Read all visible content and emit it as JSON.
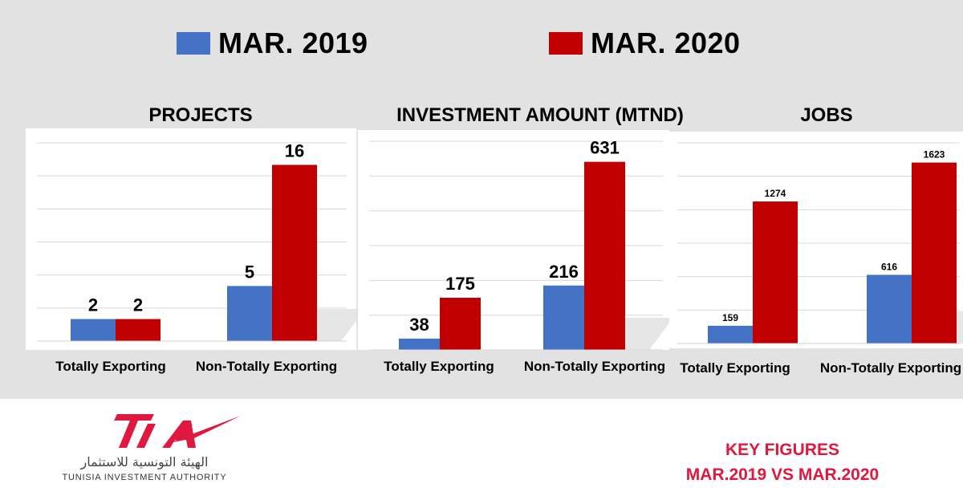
{
  "legend": [
    {
      "label": "MAR. 2019",
      "color": "#4472c4"
    },
    {
      "label": "MAR. 2020",
      "color": "#c00000"
    }
  ],
  "chart_data": [
    {
      "type": "bar",
      "title": "PROJECTS",
      "categories": [
        "Totally Exporting",
        "Non-Totally Exporting"
      ],
      "series": [
        {
          "name": "MAR. 2019",
          "values": [
            2,
            5
          ]
        },
        {
          "name": "MAR. 2020",
          "values": [
            2,
            16
          ]
        }
      ],
      "ylim": [
        0,
        18
      ],
      "grid": true,
      "legend": "top"
    },
    {
      "type": "bar",
      "title": "INVESTMENT AMOUNT (MTND)",
      "categories": [
        "Totally Exporting",
        "Non-Totally Exporting"
      ],
      "series": [
        {
          "name": "MAR. 2019",
          "values": [
            38,
            216
          ]
        },
        {
          "name": "MAR. 2020",
          "values": [
            175,
            631
          ]
        }
      ],
      "ylim": [
        0,
        700
      ],
      "grid": true,
      "legend": "top"
    },
    {
      "type": "bar",
      "title": "JOBS",
      "categories": [
        "Totally Exporting",
        "Non-Totally Exporting"
      ],
      "series": [
        {
          "name": "MAR. 2019",
          "values": [
            159,
            616
          ]
        },
        {
          "name": "MAR. 2020",
          "values": [
            1274,
            1623
          ]
        }
      ],
      "ylim": [
        0,
        1800
      ],
      "grid": true,
      "legend": "top"
    }
  ],
  "footer": {
    "logo_text": "TIA",
    "authority_ar": "الهيئة التونسية للاستثمار",
    "authority_en": "TUNISIA INVESTMENT AUTHORITY",
    "key_line1": "KEY FIGURES",
    "key_line2": "MAR.2019 VS MAR.2020"
  }
}
